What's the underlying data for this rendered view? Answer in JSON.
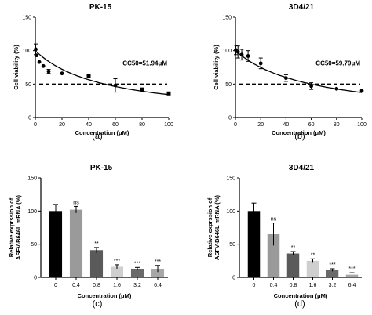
{
  "chart_data": [
    {
      "type": "scatter",
      "title": "PK-15",
      "panel_label": "(a)",
      "xlabel": "Concentration (μM)",
      "ylabel": "Cell viability (%)",
      "xlim": [
        0,
        100
      ],
      "ylim": [
        0,
        150
      ],
      "xticks": [
        "0",
        "20",
        "40",
        "60",
        "80",
        "100"
      ],
      "yticks": [
        "0",
        "50",
        "100",
        "150"
      ],
      "annotation": "CC50=51.94μM",
      "reference_line_y": 50,
      "fit_curve_ic50": 51.94,
      "points": [
        {
          "x": 0.3,
          "y": 102,
          "err": 8,
          "marker": "circle"
        },
        {
          "x": 1,
          "y": 93,
          "err": 0,
          "marker": "circle"
        },
        {
          "x": 3,
          "y": 83,
          "err": 0,
          "marker": "circle"
        },
        {
          "x": 6,
          "y": 77,
          "err": 0,
          "marker": "circle"
        },
        {
          "x": 10,
          "y": 69,
          "err": 3,
          "marker": "circle"
        },
        {
          "x": 20,
          "y": 66,
          "err": 0,
          "marker": "circle"
        },
        {
          "x": 40,
          "y": 62,
          "err": 0,
          "marker": "square"
        },
        {
          "x": 60,
          "y": 48,
          "err": 10,
          "marker": "circle"
        },
        {
          "x": 80,
          "y": 42,
          "err": 0,
          "marker": "square"
        },
        {
          "x": 100,
          "y": 36,
          "err": 0,
          "marker": "square"
        }
      ]
    },
    {
      "type": "scatter",
      "title": "3D4/21",
      "panel_label": "(b)",
      "xlabel": "Concentration (μM)",
      "ylabel": "Cell viability (%)",
      "xlim": [
        0,
        100
      ],
      "ylim": [
        0,
        150
      ],
      "xticks": [
        "0",
        "20",
        "40",
        "60",
        "80",
        "100"
      ],
      "yticks": [
        "0",
        "50",
        "100",
        "150"
      ],
      "annotation": "CC50=59.79μM",
      "reference_line_y": 50,
      "fit_curve_ic50": 59.79,
      "points": [
        {
          "x": 0.3,
          "y": 101,
          "err": 7,
          "marker": "circle"
        },
        {
          "x": 2,
          "y": 98,
          "err": 9,
          "marker": "circle"
        },
        {
          "x": 5,
          "y": 94,
          "err": 8,
          "marker": "circle"
        },
        {
          "x": 10,
          "y": 92,
          "err": 8,
          "marker": "circle"
        },
        {
          "x": 20,
          "y": 81,
          "err": 8,
          "marker": "circle"
        },
        {
          "x": 40,
          "y": 59,
          "err": 5,
          "marker": "circle"
        },
        {
          "x": 60,
          "y": 47,
          "err": 5,
          "marker": "circle"
        },
        {
          "x": 80,
          "y": 43,
          "err": 0,
          "marker": "circle"
        },
        {
          "x": 100,
          "y": 40,
          "err": 0,
          "marker": "circle"
        }
      ]
    },
    {
      "type": "bar",
      "title": "PK-15",
      "panel_label": "(c)",
      "xlabel": "Concentration (μM)",
      "ylabel": "Relative exprssion of ASFV-B646L mRNA (%)",
      "ylabel_lines": [
        "Relative exprssion of",
        "ASFV-B646L mRNA (%)"
      ],
      "ylim": [
        0,
        150
      ],
      "yticks": [
        "0",
        "50",
        "100",
        "150"
      ],
      "categories": [
        "0",
        "0.4",
        "0.8",
        "1.6",
        "3.2",
        "6.4"
      ],
      "values": [
        100,
        102,
        41,
        16,
        13,
        13
      ],
      "errors": [
        10,
        5,
        4,
        3,
        2,
        5
      ],
      "significance": [
        "",
        "ns",
        "**",
        "***",
        "***",
        "***"
      ],
      "colors": [
        "#000000",
        "#9a9a9a",
        "#5a5a5a",
        "#cfcfcf",
        "#6a6a6a",
        "#a8a8a8"
      ]
    },
    {
      "type": "bar",
      "title": "3D4/21",
      "panel_label": "(d)",
      "xlabel": "Concentration (μM)",
      "ylabel": "Relative exprssion of ASFV-B646L mRNA (%)",
      "ylabel_lines": [
        "Relative exprssion of",
        "ASFV-B646L mRNA (%)"
      ],
      "ylim": [
        0,
        150
      ],
      "yticks": [
        "0",
        "50",
        "100",
        "150"
      ],
      "categories": [
        "0",
        "0.4",
        "0.8",
        "1.6",
        "3.2",
        "6.4"
      ],
      "values": [
        100,
        65,
        36,
        25,
        11,
        4
      ],
      "errors": [
        12,
        17,
        3,
        3,
        2,
        3
      ],
      "significance": [
        "",
        "ns",
        "**",
        "**",
        "***",
        "***"
      ],
      "colors": [
        "#000000",
        "#9a9a9a",
        "#5a5a5a",
        "#cfcfcf",
        "#6a6a6a",
        "#a8a8a8"
      ]
    }
  ]
}
